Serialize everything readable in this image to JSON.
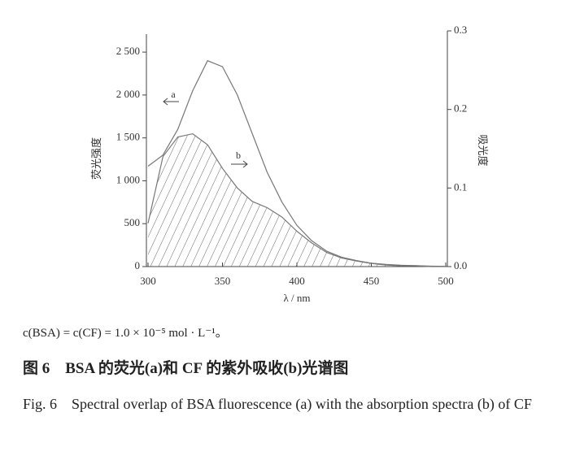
{
  "chart_data": {
    "type": "line",
    "x_label": "λ / nm",
    "y_label": "荧光强度",
    "y2_label": "吸光度",
    "x": [
      300,
      310,
      320,
      330,
      340,
      350,
      360,
      370,
      380,
      390,
      400,
      410,
      420,
      430,
      440,
      450,
      460,
      470,
      480,
      490,
      500
    ],
    "series": [
      {
        "name": "a",
        "color": "#777777",
        "values": [
          1170,
          1300,
          1600,
          2050,
          2400,
          2330,
          2000,
          1550,
          1100,
          750,
          480,
          300,
          180,
          110,
          70,
          40,
          25,
          15,
          10,
          5,
          3
        ]
      },
      {
        "name": "b",
        "color": "#777777",
        "axis": "y2",
        "hatched": true,
        "values": [
          0.055,
          0.14,
          0.165,
          0.169,
          0.155,
          0.125,
          0.1,
          0.083,
          0.075,
          0.063,
          0.045,
          0.03,
          0.018,
          0.011,
          0.007,
          0.004,
          0.002,
          0.001,
          0.001,
          0,
          0
        ]
      }
    ],
    "xlim": [
      300,
      500
    ],
    "xticks": [
      300,
      350,
      400,
      450,
      500
    ],
    "ylim": [
      0,
      2700
    ],
    "yticks": [
      0,
      500,
      {
        "value": 1000,
        "label": "1 000"
      },
      {
        "value": 1500,
        "label": "1 500"
      },
      {
        "value": 2000,
        "label": "2 000"
      },
      {
        "value": 2500,
        "label": "2 500"
      }
    ],
    "y2lim": [
      0,
      0.3
    ],
    "y2ticks": [
      {
        "value": 0,
        "label": "0.0"
      },
      0.1,
      0.2,
      0.3
    ]
  },
  "caption": {
    "note": "c(BSA) = c(CF) = 1.0 × 10⁻⁵ mol · L⁻¹。",
    "title_cn": "图 6　BSA 的荧光(a)和 CF 的紫外吸收(b)光谱图",
    "title_en": "Fig. 6　Spectral overlap of BSA fluorescence (a) with the absorption spectra (b) of CF"
  }
}
